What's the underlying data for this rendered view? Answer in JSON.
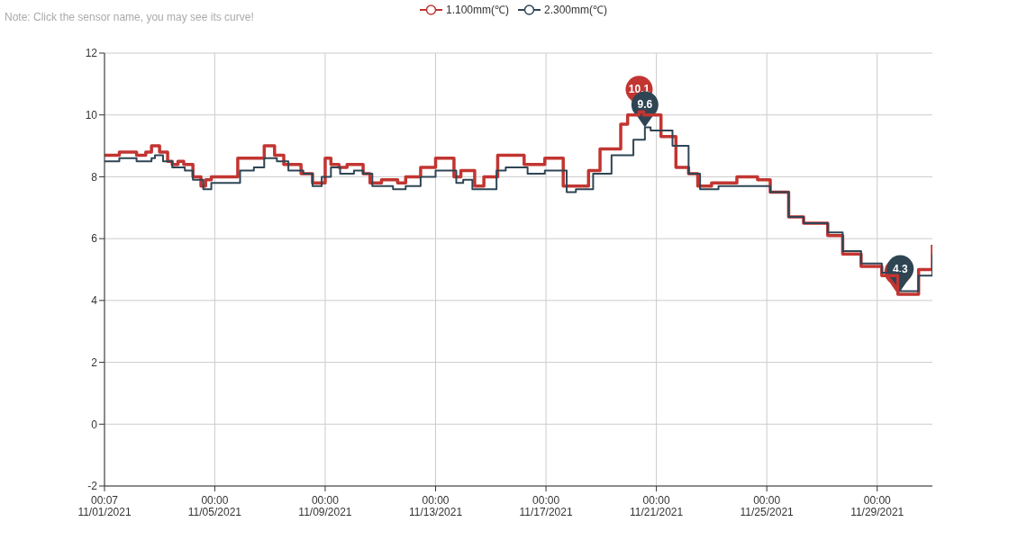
{
  "chart_data": {
    "type": "step",
    "annotations": [
      "Note: Click the sensor name, you may see its curve!",
      {
        "text": "10.1",
        "x": "2021-11-20T09:00",
        "y": 10.1
      },
      {
        "text": "9.6",
        "x": "2021-11-20T14:00",
        "y": 9.6
      },
      {
        "text": "4.3",
        "x": "2021-11-29T20:00",
        "y": 4.3
      }
    ],
    "legend": "top",
    "marker": "none",
    "grid": true,
    "line_style": "solid",
    "xlim": [
      "2021-11-01T00:07",
      "2021-12-01T00:00"
    ],
    "xticks": [
      {
        "value": "2021-11-01T00:07",
        "label": "00:07 11/01/2021"
      },
      {
        "value": "2021-11-05T00:00",
        "label": "00:00 11/05/2021"
      },
      {
        "value": "2021-11-09T00:00",
        "label": "00:00 11/09/2021"
      },
      {
        "value": "2021-11-13T00:00",
        "label": "00:00 11/13/2021"
      },
      {
        "value": "2021-11-17T00:00",
        "label": "00:00 11/17/2021"
      },
      {
        "value": "2021-11-21T00:00",
        "label": "00:00 11/21/2021"
      },
      {
        "value": "2021-11-25T00:00",
        "label": "00:00 11/25/2021"
      },
      {
        "value": "2021-11-29T00:00",
        "label": "00:00 11/29/2021"
      }
    ],
    "ylim": [
      -2,
      12
    ],
    "yticks": [
      -2,
      0,
      2,
      4,
      6,
      8,
      10,
      12
    ],
    "series": [
      {
        "name": "1.100mm(℃)",
        "color": "#c23531",
        "x": [
          "2021-11-01T00:07",
          "2021-11-01T13:00",
          "2021-11-02T04:00",
          "2021-11-02T12:00",
          "2021-11-02T17:00",
          "2021-11-03T00:00",
          "2021-11-03T07:00",
          "2021-11-03T11:00",
          "2021-11-03T16:00",
          "2021-11-03T21:00",
          "2021-11-04T05:00",
          "2021-11-04T12:00",
          "2021-11-04T16:00",
          "2021-11-04T21:00",
          "2021-11-05T10:00",
          "2021-11-05T20:00",
          "2021-11-06T11:00",
          "2021-11-06T19:00",
          "2021-11-07T04:00",
          "2021-11-07T12:00",
          "2021-11-07T20:00",
          "2021-11-08T03:00",
          "2021-11-08T13:00",
          "2021-11-09T00:00",
          "2021-11-09T05:00",
          "2021-11-09T12:00",
          "2021-11-09T19:00",
          "2021-11-10T03:00",
          "2021-11-10T09:00",
          "2021-11-10T15:00",
          "2021-11-11T01:00",
          "2021-11-11T15:00",
          "2021-11-11T22:00",
          "2021-11-12T11:00",
          "2021-11-13T00:00",
          "2021-11-13T16:00",
          "2021-11-13T22:00",
          "2021-11-14T10:00",
          "2021-11-14T18:00",
          "2021-11-15T06:00",
          "2021-11-15T16:00",
          "2021-11-16T05:00",
          "2021-11-16T18:00",
          "2021-11-16T23:00",
          "2021-11-17T15:00",
          "2021-11-17T23:00",
          "2021-11-18T13:00",
          "2021-11-18T23:00",
          "2021-11-19T17:00",
          "2021-11-19T23:00",
          "2021-11-20T09:00",
          "2021-11-20T13:00",
          "2021-11-20T18:00",
          "2021-11-21T04:00",
          "2021-11-21T17:00",
          "2021-11-22T04:00",
          "2021-11-22T12:00",
          "2021-11-23T00:00",
          "2021-11-23T22:00",
          "2021-11-24T08:00",
          "2021-11-24T16:00",
          "2021-11-25T03:00",
          "2021-11-25T19:00",
          "2021-11-26T08:00",
          "2021-11-26T15:00",
          "2021-11-27T05:00",
          "2021-11-27T18:00",
          "2021-11-28T10:00",
          "2021-11-29T04:00",
          "2021-11-29T18:00",
          "2021-11-30T12:00",
          "2021-12-01T00:00"
        ],
        "values": [
          8.7,
          8.8,
          8.7,
          8.8,
          9.0,
          8.8,
          8.5,
          8.4,
          8.5,
          8.4,
          8.0,
          7.7,
          7.9,
          8.0,
          8.0,
          8.6,
          8.6,
          9.0,
          8.7,
          8.4,
          8.4,
          8.1,
          7.8,
          8.6,
          8.4,
          8.3,
          8.4,
          8.4,
          8.1,
          7.8,
          7.9,
          7.8,
          8.0,
          8.3,
          8.6,
          8.0,
          8.2,
          7.7,
          8.0,
          8.7,
          8.7,
          8.4,
          8.4,
          8.6,
          7.7,
          7.7,
          8.2,
          8.9,
          9.7,
          10.0,
          10.1,
          10.0,
          10.0,
          9.3,
          8.3,
          8.1,
          7.7,
          7.8,
          8.0,
          8.0,
          7.9,
          7.5,
          6.7,
          6.5,
          6.5,
          6.1,
          5.5,
          5.1,
          4.8,
          4.2,
          5.0,
          5.8
        ]
      },
      {
        "name": "2.300mm(℃)",
        "color": "#2f4554",
        "x": [
          "2021-11-01T00:07",
          "2021-11-01T13:00",
          "2021-11-02T04:00",
          "2021-11-02T17:00",
          "2021-11-02T20:00",
          "2021-11-03T03:00",
          "2021-11-03T11:00",
          "2021-11-03T22:00",
          "2021-11-04T05:00",
          "2021-11-04T14:00",
          "2021-11-04T21:00",
          "2021-11-05T12:00",
          "2021-11-05T22:00",
          "2021-11-06T10:00",
          "2021-11-06T19:00",
          "2021-11-07T06:00",
          "2021-11-07T16:00",
          "2021-11-08T05:00",
          "2021-11-08T13:00",
          "2021-11-08T21:00",
          "2021-11-09T05:00",
          "2021-11-09T13:00",
          "2021-11-10T01:00",
          "2021-11-10T09:00",
          "2021-11-10T17:00",
          "2021-11-11T11:00",
          "2021-11-11T22:00",
          "2021-11-12T11:00",
          "2021-11-13T00:00",
          "2021-11-13T18:00",
          "2021-11-14T00:00",
          "2021-11-14T08:00",
          "2021-11-14T18:00",
          "2021-11-15T05:00",
          "2021-11-15T13:00",
          "2021-11-16T02:00",
          "2021-11-16T08:00",
          "2021-11-16T18:00",
          "2021-11-16T23:00",
          "2021-11-17T18:00",
          "2021-11-18T02:00",
          "2021-11-18T17:00",
          "2021-11-19T09:00",
          "2021-11-20T04:00",
          "2021-11-20T14:00",
          "2021-11-20T19:00",
          "2021-11-21T01:00",
          "2021-11-21T14:00",
          "2021-11-22T04:00",
          "2021-11-22T14:00",
          "2021-11-23T00:00",
          "2021-11-23T06:00",
          "2021-11-24T16:00",
          "2021-11-25T03:00",
          "2021-11-25T19:00",
          "2021-11-26T08:00",
          "2021-11-27T05:00",
          "2021-11-27T18:00",
          "2021-11-28T10:00",
          "2021-11-29T04:00",
          "2021-11-29T20:00",
          "2021-11-30T12:00",
          "2021-12-01T00:00"
        ],
        "values": [
          8.5,
          8.6,
          8.5,
          8.6,
          8.7,
          8.5,
          8.3,
          8.2,
          7.9,
          7.6,
          7.8,
          7.8,
          8.2,
          8.3,
          8.6,
          8.5,
          8.2,
          8.1,
          7.7,
          8.0,
          8.3,
          8.1,
          8.2,
          8.1,
          7.7,
          7.6,
          7.7,
          8.0,
          8.2,
          7.8,
          7.9,
          7.6,
          7.6,
          8.2,
          8.3,
          8.3,
          8.1,
          8.1,
          8.2,
          7.5,
          7.6,
          8.1,
          8.7,
          9.2,
          9.6,
          9.5,
          9.5,
          9.0,
          8.1,
          7.6,
          7.6,
          7.7,
          7.7,
          7.5,
          6.7,
          6.5,
          6.2,
          5.6,
          5.2,
          4.9,
          4.3,
          4.8,
          5.5
        ]
      }
    ]
  }
}
